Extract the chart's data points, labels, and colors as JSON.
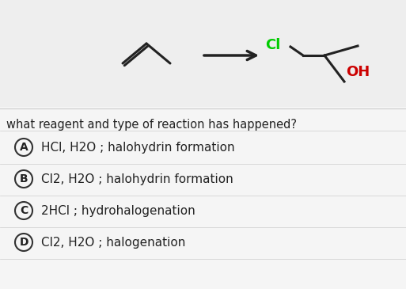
{
  "bg_color": "#f5f5f5",
  "top_panel_color": "#f0f0f0",
  "question_text": "what reagent and type of reaction has happened?",
  "options": [
    {
      "label": "A",
      "text": "HCl, H2O ; halohydrin formation"
    },
    {
      "label": "B",
      "text": "Cl2, H2O ; halohydrin formation"
    },
    {
      "label": "C",
      "text": "2HCl ; hydrohalogenation"
    },
    {
      "label": "D",
      "text": "Cl2, H2O ; halogenation"
    }
  ],
  "OH_color": "#cc0000",
  "Cl_color": "#00cc00",
  "text_color": "#222222",
  "circle_color": "#333333",
  "font_size_options": 11,
  "font_size_question": 10.5,
  "arrow_color": "#222222"
}
